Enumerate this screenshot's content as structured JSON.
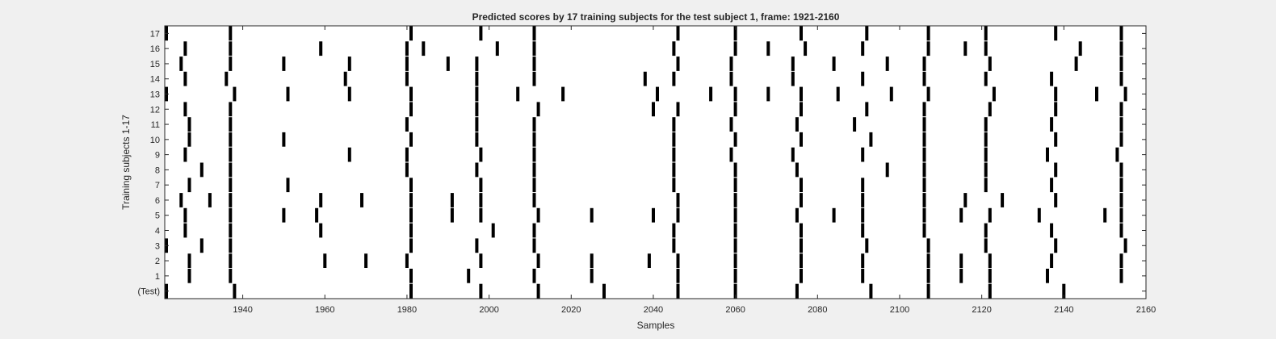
{
  "chart_data": {
    "type": "raster",
    "title": "Predicted scores by 17 training subjects for the test subject 1, frame: 1921-2160",
    "xlabel": "Samples",
    "ylabel": "Training subjects 1-17",
    "xlim": [
      1921,
      2160
    ],
    "xticks": [
      1940,
      1960,
      1980,
      2000,
      2020,
      2040,
      2060,
      2080,
      2100,
      2120,
      2140,
      2160
    ],
    "rows": [
      {
        "label": "(Test)",
        "events": [
          1921,
          1938,
          1981,
          1998,
          2012,
          2028,
          2046,
          2060,
          2075,
          2093,
          2107,
          2122,
          2140
        ]
      },
      {
        "label": "1",
        "events": [
          1927,
          1937,
          1981,
          1995,
          2011,
          2025,
          2046,
          2060,
          2076,
          2091,
          2107,
          2115,
          2122,
          2136,
          2154
        ]
      },
      {
        "label": "2",
        "events": [
          1927,
          1937,
          1980,
          1960,
          1970,
          1998,
          2012,
          2025,
          2039,
          2046,
          2060,
          2076,
          2091,
          2107,
          2115,
          2122,
          2137,
          2154
        ]
      },
      {
        "label": "3",
        "events": [
          1921,
          1930,
          1937,
          1981,
          1997,
          2011,
          2045,
          2060,
          2076,
          2092,
          2107,
          2121,
          2138,
          2155
        ]
      },
      {
        "label": "4",
        "events": [
          1926,
          1937,
          1981,
          1959,
          2001,
          2011,
          2045,
          2060,
          2076,
          2091,
          2106,
          2121,
          2137,
          2154
        ]
      },
      {
        "label": "5",
        "events": [
          1926,
          1937,
          1950,
          1958,
          1981,
          1991,
          1998,
          2012,
          2025,
          2040,
          2046,
          2060,
          2075,
          2084,
          2091,
          2106,
          2115,
          2122,
          2134,
          2150,
          2154
        ]
      },
      {
        "label": "6",
        "events": [
          1925,
          1932,
          1937,
          1959,
          1969,
          1981,
          1991,
          1998,
          2011,
          2046,
          2060,
          2076,
          2091,
          2106,
          2116,
          2125,
          2138,
          2154
        ]
      },
      {
        "label": "7",
        "events": [
          1927,
          1937,
          1951,
          1981,
          1998,
          2011,
          2045,
          2060,
          2076,
          2091,
          2106,
          2121,
          2137,
          2154
        ]
      },
      {
        "label": "8",
        "events": [
          1930,
          1937,
          1980,
          1997,
          2011,
          2045,
          2060,
          2075,
          2097,
          2106,
          2121,
          2138,
          2154
        ]
      },
      {
        "label": "9",
        "events": [
          1926,
          1937,
          1966,
          1980,
          1998,
          2011,
          2045,
          2059,
          2074,
          2091,
          2106,
          2121,
          2136,
          2153
        ]
      },
      {
        "label": "10",
        "events": [
          1927,
          1937,
          1950,
          1981,
          1997,
          2011,
          2045,
          2060,
          2076,
          2093,
          2106,
          2121,
          2138,
          2154
        ]
      },
      {
        "label": "11",
        "events": [
          1927,
          1937,
          1980,
          1997,
          2011,
          2045,
          2059,
          2075,
          2089,
          2106,
          2121,
          2137,
          2154
        ]
      },
      {
        "label": "12",
        "events": [
          1926,
          1937,
          1981,
          1997,
          2012,
          2040,
          2046,
          2060,
          2076,
          2092,
          2106,
          2122,
          2138,
          2154
        ]
      },
      {
        "label": "13",
        "events": [
          1921,
          1938,
          1951,
          1966,
          1981,
          1997,
          2007,
          2018,
          2041,
          2054,
          2060,
          2068,
          2076,
          2085,
          2098,
          2107,
          2123,
          2138,
          2148,
          2155
        ]
      },
      {
        "label": "14",
        "events": [
          1926,
          1936,
          1965,
          1980,
          1997,
          2011,
          2038,
          2045,
          2059,
          2074,
          2091,
          2106,
          2121,
          2137,
          2154
        ]
      },
      {
        "label": "15",
        "events": [
          1925,
          1937,
          1950,
          1966,
          1980,
          1990,
          1997,
          2011,
          2046,
          2059,
          2074,
          2084,
          2097,
          2106,
          2122,
          2143,
          2154
        ]
      },
      {
        "label": "16",
        "events": [
          1926,
          1937,
          1959,
          1980,
          1984,
          2002,
          2011,
          2045,
          2060,
          2068,
          2077,
          2091,
          2107,
          2116,
          2121,
          2144,
          2154
        ]
      },
      {
        "label": "17",
        "events": [
          1921,
          1937,
          1981,
          1998,
          2011,
          2046,
          2060,
          2076,
          2092,
          2107,
          2121,
          2138,
          2154
        ]
      }
    ]
  }
}
